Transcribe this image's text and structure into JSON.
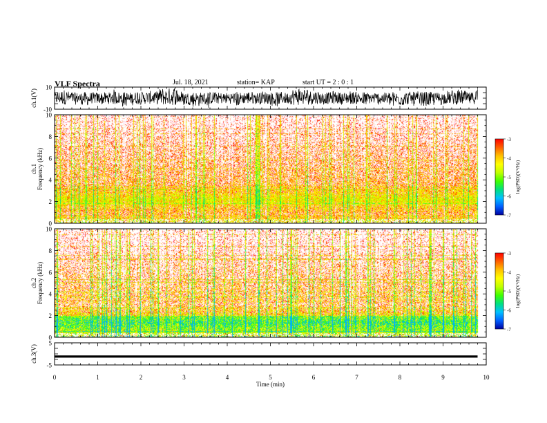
{
  "header": {
    "title": "VLF Spectra",
    "date": "Jul. 18, 2021",
    "station": "station= KAP",
    "start_ut": "start UT =  2 : 0 : 1"
  },
  "colors": {
    "spectrogram_scale": [
      "#0000a0",
      "#0060ff",
      "#00c0ff",
      "#00e080",
      "#40ff00",
      "#c0ff00",
      "#ffff00",
      "#ffc000",
      "#ff6000",
      "#ff0000",
      "#ffffff"
    ]
  },
  "chart_data": [
    {
      "type": "line",
      "panel": "ch1-waveform",
      "ylabel": "ch.1(V)",
      "ylim": [
        -10,
        10
      ],
      "y_tick_labels": [
        "10",
        "-10"
      ],
      "xlim": [
        0,
        10
      ],
      "signal_extent_min": 9.8,
      "description_of_values": "noisy waveform envelope roughly between -7 V and +7 V"
    },
    {
      "type": "heatmap",
      "panel": "ch1-spectrogram",
      "ylabel": "ch.1 Frequency (kHz)",
      "ylim": [
        0,
        10
      ],
      "y_tick_labels": [
        "0",
        "2",
        "4",
        "6",
        "8",
        "10"
      ],
      "xlim": [
        0,
        10
      ],
      "signal_extent_min": 9.8,
      "intense_band_khz": [
        0.8,
        3.6
      ],
      "colorbar": {
        "label": "log(PSD)(V²/Hz)",
        "range": [
          -7,
          -3
        ],
        "tick_labels": [
          "-3",
          "-4",
          "-5",
          "-6",
          "-7"
        ]
      }
    },
    {
      "type": "heatmap",
      "panel": "ch2-spectrogram",
      "ylabel": "ch.2 Frequency (kHz)",
      "ylim": [
        0,
        10
      ],
      "y_tick_labels": [
        "0",
        "2",
        "4",
        "6",
        "8",
        "10"
      ],
      "xlim": [
        0,
        10
      ],
      "signal_extent_min": 9.8,
      "intense_band_khz": [
        0.5,
        3.2
      ],
      "colorbar": {
        "label": "log(PSD)(V²/Hz)",
        "range": [
          -7,
          -3
        ],
        "tick_labels": [
          "-3",
          "-4",
          "-5",
          "-6",
          "-7"
        ]
      }
    },
    {
      "type": "line",
      "panel": "ch3-waveform",
      "ylabel": "ch.3(V)",
      "ylim": [
        -5,
        5
      ],
      "y_tick_labels": [
        "5",
        "-5"
      ],
      "xlim": [
        0,
        10
      ],
      "signal_extent_min": 9.8,
      "signal_center_v": -1.2,
      "signal_halfwidth_v": 0.5
    }
  ],
  "x_axis": {
    "label": "Time (min)",
    "tick_labels": [
      "0",
      "1",
      "2",
      "3",
      "4",
      "5",
      "6",
      "7",
      "8",
      "9",
      "10"
    ]
  }
}
